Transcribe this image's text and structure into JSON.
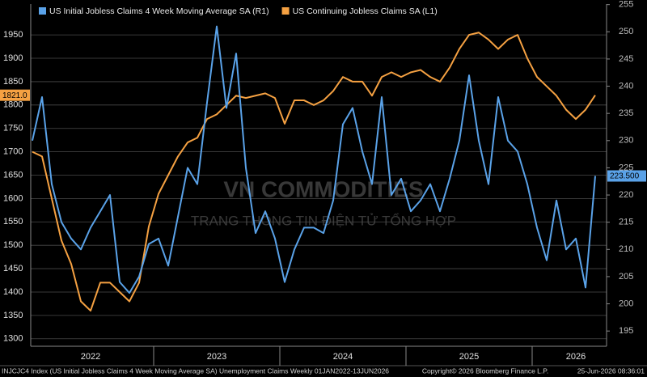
{
  "chart_data": {
    "type": "line",
    "annotations": [
      "VN COMMODITIES",
      "TRANG THÔNG TIN ĐIỆN TỬ TỔNG HỢP"
    ],
    "footer": {
      "left": "INJCJC4 Index (US Initial Jobless Claims 4 Week Moving Average SA) Unemployment Claims Weekly 01JAN2022-13JUN2026",
      "center": "Copyright© 2026 Bloomberg Finance L.P.",
      "right": "25-Jun-2026 08:36:01"
    },
    "categories": [
      null,
      null,
      null,
      null,
      null,
      null,
      "2022",
      null,
      null,
      null,
      null,
      null,
      null,
      null,
      null,
      null,
      null,
      null,
      null,
      "2023",
      null,
      null,
      null,
      null,
      null,
      null,
      null,
      null,
      null,
      null,
      null,
      null,
      "2024",
      null,
      null,
      null,
      null,
      null,
      null,
      null,
      null,
      null,
      null,
      null,
      null,
      "2025",
      null,
      null,
      null,
      null,
      null,
      null,
      null,
      null,
      null,
      null,
      "2026",
      null,
      null
    ],
    "series": [
      {
        "name": "US Continuing Jobless Claims SA (L1)",
        "color": "#f5a142",
        "axis": "y",
        "values": [
          1700,
          1690,
          1600,
          1510,
          1460,
          1380,
          1360,
          1420,
          1420,
          1400,
          1380,
          1420,
          1540,
          1610,
          1650,
          1690,
          1720,
          1730,
          1770,
          1780,
          1800,
          1820,
          1815,
          1820,
          1825,
          1815,
          1760,
          1810,
          1810,
          1800,
          1810,
          1830,
          1860,
          1850,
          1850,
          1820,
          1860,
          1870,
          1860,
          1870,
          1875,
          1860,
          1850,
          1880,
          1920,
          1950,
          1955,
          1940,
          1920,
          1940,
          1950,
          1900,
          1860,
          1840,
          1820,
          1790,
          1770,
          1790,
          1821
        ],
        "last_label": "1821.0"
      },
      {
        "name": "US Initial Jobless Claims 4 Week Moving Average SA (R1)",
        "color": "#5aa2e8",
        "axis": "y2",
        "values": [
          230,
          238,
          222,
          215,
          212,
          210,
          214,
          217,
          220,
          204,
          202,
          205,
          211,
          212,
          207,
          216,
          225,
          222,
          237,
          251,
          236,
          246,
          225,
          213,
          217,
          212,
          204,
          210,
          214,
          214,
          213,
          219,
          233,
          236,
          228,
          222,
          238,
          220,
          223,
          217,
          219,
          222,
          217,
          223,
          230,
          242,
          230,
          222,
          238,
          230,
          228,
          222,
          214,
          208,
          219,
          210,
          212,
          203,
          223.5
        ],
        "last_label": "223.500"
      }
    ],
    "ylim": [
      1284,
      2016
    ],
    "yticks": [
      1300,
      1350,
      1400,
      1450,
      1500,
      1550,
      1600,
      1650,
      1700,
      1750,
      1800,
      1850,
      1900,
      1950
    ],
    "y2lim": [
      192.2,
      255.1
    ],
    "y2ticks": [
      195,
      200,
      205,
      210,
      215,
      220,
      225,
      230,
      235,
      240,
      245,
      250,
      255
    ],
    "grid": true
  }
}
